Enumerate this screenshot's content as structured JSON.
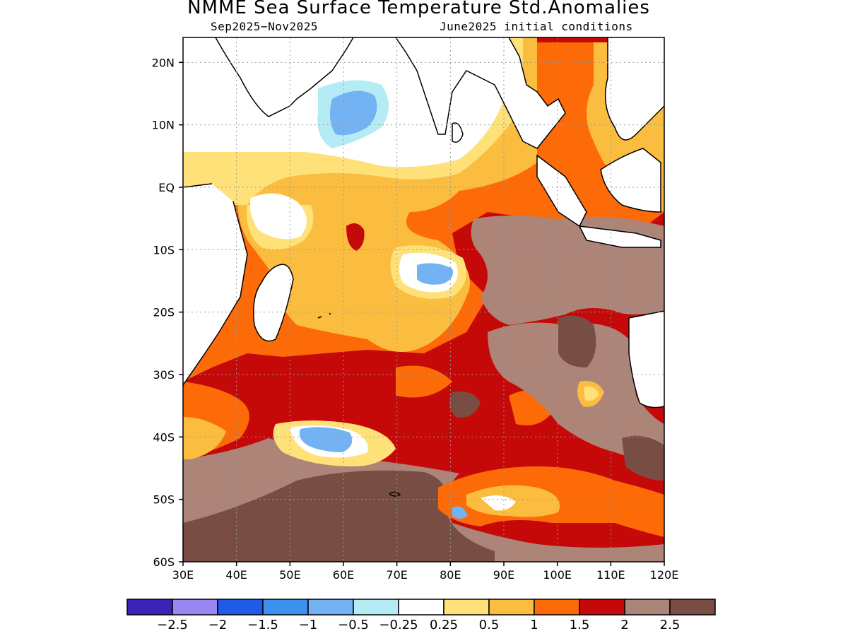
{
  "header": {
    "title": "NMME Sea Surface Temperature Std.Anomalies",
    "season": "Sep2025−Nov2025",
    "init": "June2025 initial conditions"
  },
  "map": {
    "lon_range": [
      30,
      120
    ],
    "lat_range": [
      -60,
      24
    ],
    "lat_ticks": [
      {
        "value": 20,
        "label": "20N"
      },
      {
        "value": 10,
        "label": "10N"
      },
      {
        "value": 0,
        "label": "EQ"
      },
      {
        "value": -10,
        "label": "10S"
      },
      {
        "value": -20,
        "label": "20S"
      },
      {
        "value": -30,
        "label": "30S"
      },
      {
        "value": -40,
        "label": "40S"
      },
      {
        "value": -50,
        "label": "50S"
      },
      {
        "value": -60,
        "label": "60S"
      }
    ],
    "lon_ticks": [
      {
        "value": 30,
        "label": "30E"
      },
      {
        "value": 40,
        "label": "40E"
      },
      {
        "value": 50,
        "label": "50E"
      },
      {
        "value": 60,
        "label": "60E"
      },
      {
        "value": 70,
        "label": "70E"
      },
      {
        "value": 80,
        "label": "80E"
      },
      {
        "value": 90,
        "label": "90E"
      },
      {
        "value": 100,
        "label": "100E"
      },
      {
        "value": 110,
        "label": "110E"
      },
      {
        "value": 120,
        "label": "120E"
      }
    ],
    "grid": "dotted",
    "field": "SST standardized anomaly",
    "land_color": "#ffffff"
  },
  "colorbar": {
    "colors": [
      "#3b23b8",
      "#9b87f2",
      "#1e5be8",
      "#3d91ee",
      "#73b2f3",
      "#b3ecf5",
      "#ffffff",
      "#ffe17a",
      "#fbbd3f",
      "#fd6a08",
      "#c50909",
      "#ad8478",
      "#784d44"
    ],
    "labels": [
      "−2.5",
      "−2",
      "−1.5",
      "−1",
      "−0.5",
      "−0.25",
      "0.25",
      "0.5",
      "1",
      "1.5",
      "2",
      "2.5"
    ]
  }
}
